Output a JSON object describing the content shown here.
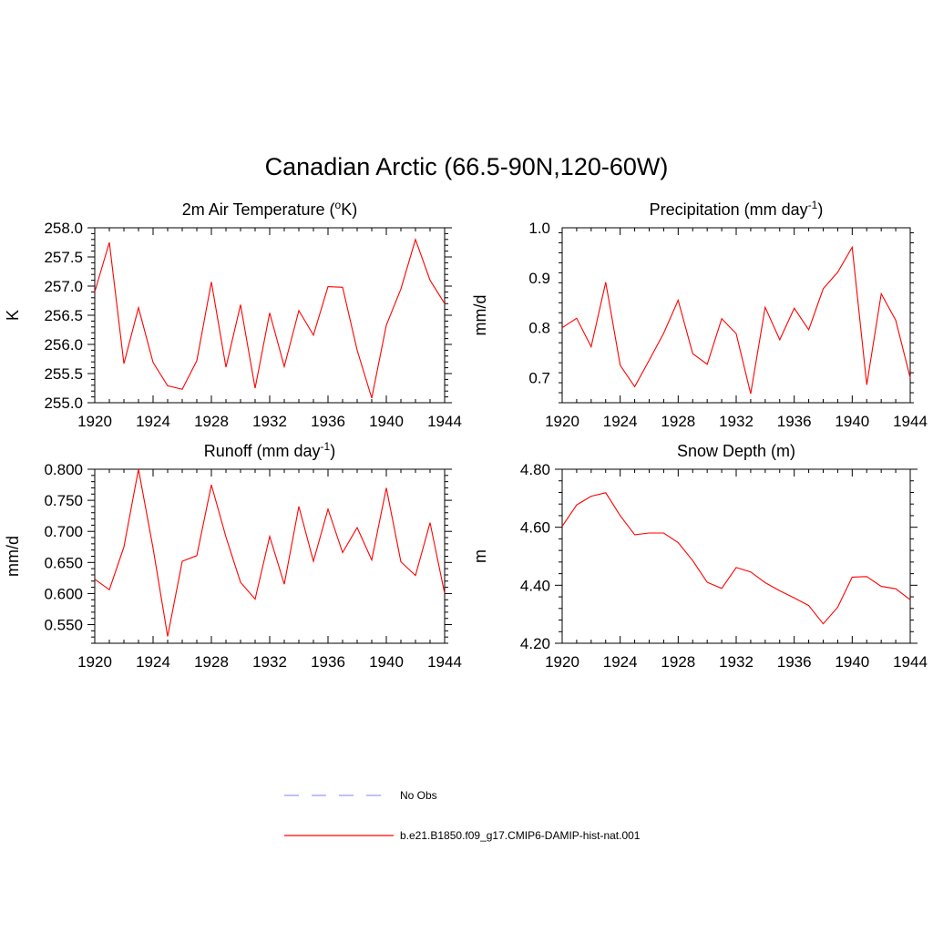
{
  "figure": {
    "title": "Canadian Arctic (66.5-90N,120-60W)"
  },
  "legend": {
    "entries": [
      {
        "label": "No Obs",
        "color": "#9999ff",
        "dash": "dashed"
      },
      {
        "label": "b.e21.B1850.f09_g17.CMIP6-DAMIP-hist-nat.001",
        "color": "#ff0000",
        "dash": "solid"
      }
    ]
  },
  "chart_data": [
    {
      "type": "line",
      "title": "2m Air Temperature (",
      "title_sup": "o",
      "title_tail": "K)",
      "xlabel": "",
      "ylabel": "K",
      "xlim": [
        1920,
        1944
      ],
      "ylim": [
        255.0,
        258.0
      ],
      "xticks": [
        1920,
        1924,
        1928,
        1932,
        1936,
        1940,
        1944
      ],
      "yticks": [
        "255.0",
        "255.5",
        "256.0",
        "256.5",
        "257.0",
        "257.5",
        "258.0"
      ],
      "series": [
        {
          "color": "#ff0000",
          "x": [
            1920,
            1921,
            1922,
            1923,
            1924,
            1925,
            1926,
            1927,
            1928,
            1929,
            1930,
            1931,
            1932,
            1933,
            1934,
            1935,
            1936,
            1937,
            1938,
            1939,
            1940,
            1941,
            1942,
            1943,
            1944
          ],
          "y": [
            256.9,
            257.75,
            255.67,
            256.63,
            255.69,
            255.29,
            255.23,
            255.72,
            257.07,
            255.61,
            256.68,
            255.25,
            256.54,
            255.62,
            256.58,
            256.16,
            256.99,
            256.98,
            255.9,
            255.08,
            256.33,
            256.95,
            257.8,
            257.1,
            256.7
          ]
        }
      ]
    },
    {
      "type": "line",
      "title": "Precipitation (mm day",
      "title_sup": "-1",
      "title_tail": ")",
      "xlabel": "",
      "ylabel": "mm/d",
      "xlim": [
        1920,
        1944
      ],
      "ylim": [
        0.65,
        1.0
      ],
      "xticks": [
        1920,
        1924,
        1928,
        1932,
        1936,
        1940,
        1944
      ],
      "yticks": [
        "0.7",
        "0.8",
        "0.9",
        "1.0"
      ],
      "series": [
        {
          "color": "#ff0000",
          "x": [
            1920,
            1921,
            1922,
            1923,
            1924,
            1925,
            1926,
            1927,
            1928,
            1929,
            1930,
            1931,
            1932,
            1933,
            1934,
            1935,
            1936,
            1937,
            1938,
            1939,
            1940,
            1941,
            1942,
            1943,
            1944
          ],
          "y": [
            0.8,
            0.819,
            0.762,
            0.891,
            0.725,
            0.682,
            0.735,
            0.789,
            0.855,
            0.748,
            0.727,
            0.818,
            0.788,
            0.668,
            0.841,
            0.776,
            0.839,
            0.796,
            0.878,
            0.911,
            0.961,
            0.686,
            0.868,
            0.815,
            0.7
          ]
        }
      ]
    },
    {
      "type": "line",
      "title": "Runoff (mm day",
      "title_sup": "-1",
      "title_tail": ")",
      "xlabel": "",
      "ylabel": "mm/d",
      "xlim": [
        1920,
        1944
      ],
      "ylim": [
        0.52,
        0.8
      ],
      "xticks": [
        1920,
        1924,
        1928,
        1932,
        1936,
        1940,
        1944
      ],
      "yticks": [
        "0.550",
        "0.600",
        "0.650",
        "0.700",
        "0.750",
        "0.800"
      ],
      "series": [
        {
          "color": "#ff0000",
          "x": [
            1920,
            1921,
            1922,
            1923,
            1924,
            1925,
            1926,
            1927,
            1928,
            1929,
            1930,
            1931,
            1932,
            1933,
            1934,
            1935,
            1936,
            1937,
            1938,
            1939,
            1940,
            1941,
            1942,
            1943,
            1944
          ],
          "y": [
            0.623,
            0.606,
            0.675,
            0.8,
            0.673,
            0.531,
            0.652,
            0.661,
            0.775,
            0.691,
            0.618,
            0.591,
            0.692,
            0.615,
            0.74,
            0.652,
            0.736,
            0.666,
            0.706,
            0.654,
            0.77,
            0.651,
            0.629,
            0.714,
            0.6
          ]
        }
      ]
    },
    {
      "type": "line",
      "title": "Snow Depth (m)",
      "title_sup": "",
      "title_tail": "",
      "xlabel": "",
      "ylabel": "m",
      "xlim": [
        1920,
        1944
      ],
      "ylim": [
        4.2,
        4.8
      ],
      "xticks": [
        1920,
        1924,
        1928,
        1932,
        1936,
        1940,
        1944
      ],
      "yticks": [
        "4.20",
        "4.40",
        "4.60",
        "4.80"
      ],
      "series": [
        {
          "color": "#ff0000",
          "x": [
            1920,
            1921,
            1922,
            1923,
            1924,
            1925,
            1926,
            1927,
            1928,
            1929,
            1930,
            1931,
            1932,
            1933,
            1934,
            1935,
            1936,
            1937,
            1938,
            1939,
            1940,
            1941,
            1942,
            1943,
            1944
          ],
          "y": [
            4.603,
            4.677,
            4.707,
            4.719,
            4.64,
            4.574,
            4.58,
            4.58,
            4.547,
            4.485,
            4.41,
            4.389,
            4.461,
            4.446,
            4.409,
            4.381,
            4.356,
            4.33,
            4.267,
            4.324,
            4.428,
            4.43,
            4.396,
            4.388,
            4.35
          ]
        }
      ]
    }
  ]
}
